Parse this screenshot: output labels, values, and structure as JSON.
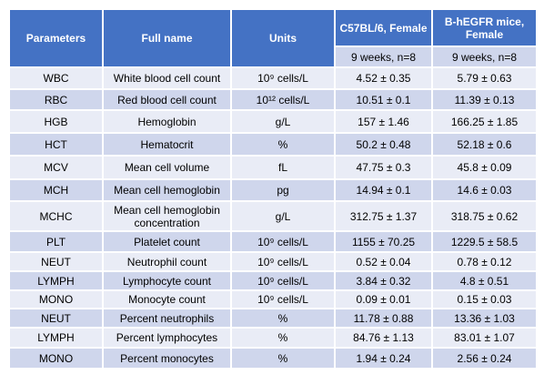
{
  "table": {
    "header": [
      "Parameters",
      "Full name",
      "Units",
      "C57BL/6, Female",
      "B-hEGFR mice, Female"
    ],
    "subheader": [
      "9 weeks, n=8",
      "9 weeks, n=8"
    ],
    "rows": [
      [
        "WBC",
        "White blood cell count",
        "10⁹ cells/L",
        "4.52 ± 0.35",
        "5.79 ± 0.63"
      ],
      [
        "RBC",
        "Red blood cell count",
        "10¹² cells/L",
        "10.51 ± 0.1",
        "11.39 ± 0.13"
      ],
      [
        "HGB",
        "Hemoglobin",
        "g/L",
        "157 ± 1.46",
        "166.25 ± 1.85"
      ],
      [
        "HCT",
        "Hematocrit",
        "%",
        "50.2 ± 0.48",
        "52.18 ± 0.6"
      ],
      [
        "MCV",
        "Mean cell volume",
        "fL",
        "47.75 ± 0.3",
        "45.8 ± 0.09"
      ],
      [
        "MCH",
        "Mean cell hemoglobin",
        "pg",
        "14.94 ± 0.1",
        "14.6 ± 0.03"
      ],
      [
        "MCHC",
        "Mean cell hemoglobin concentration",
        "g/L",
        "312.75 ± 1.37",
        "318.75 ± 0.62"
      ],
      [
        "PLT",
        "Platelet count",
        "10⁹ cells/L",
        "1155 ± 70.25",
        "1229.5 ± 58.5"
      ],
      [
        "NEUT",
        "Neutrophil count",
        "10⁹ cells/L",
        "0.52 ± 0.04",
        "0.78 ± 0.12"
      ],
      [
        "LYMPH",
        "Lymphocyte count",
        "10⁹ cells/L",
        "3.84 ± 0.32",
        "4.8 ± 0.51"
      ],
      [
        "MONO",
        "Monocyte count",
        "10⁹ cells/L",
        "0.09 ± 0.01",
        "0.15 ± 0.03"
      ],
      [
        "NEUT",
        "Percent neutrophils",
        "%",
        "11.78 ± 0.88",
        "13.36 ± 1.03"
      ],
      [
        "LYMPH",
        "Percent lymphocytes",
        "%",
        "84.76 ± 1.13",
        "83.01 ± 1.07"
      ],
      [
        "MONO",
        "Percent monocytes",
        "%",
        "1.94 ± 0.24",
        "2.56 ± 0.24"
      ]
    ]
  }
}
